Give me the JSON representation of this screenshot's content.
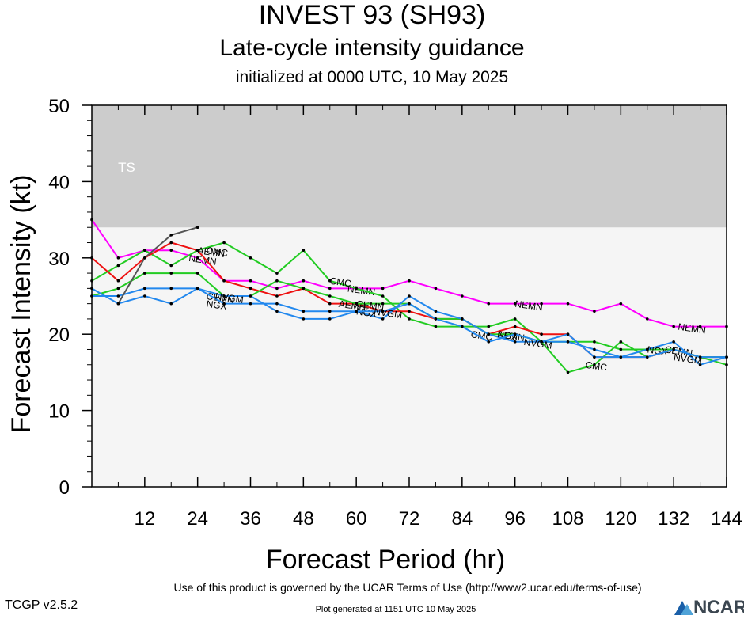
{
  "header": {
    "title": "INVEST 93 (SH93)",
    "subtitle": "Late-cycle intensity guidance",
    "init": "initialized at 0000 UTC, 10 May 2025"
  },
  "footer": {
    "terms": "Use of this product is governed by the UCAR Terms of Use (http://www2.ucar.edu/terms-of-use)",
    "version": "TCGP v2.5.2",
    "plot_generated": "Plot generated at 1151 UTC   10 May 2025",
    "logo_text": "NCAR"
  },
  "chart_data": {
    "type": "line",
    "title": "INVEST 93 (SH93)",
    "subtitle": "Late-cycle intensity guidance",
    "xlabel": "Forecast Period (hr)",
    "ylabel": "Forecast Intensity (kt)",
    "xlim": [
      0,
      144
    ],
    "ylim": [
      0,
      50
    ],
    "xticks": [
      12,
      24,
      36,
      48,
      60,
      72,
      84,
      96,
      108,
      120,
      132,
      144
    ],
    "yticks": [
      0,
      10,
      20,
      30,
      40,
      50
    ],
    "bands": [
      {
        "label": "TS",
        "from": 34,
        "to": 50,
        "color": "#cccccc"
      }
    ],
    "background_color": "#f5f5f5",
    "grid": false,
    "series": [
      {
        "name": "NEMN",
        "color": "#ff00ff",
        "x": [
          0,
          6,
          12,
          18,
          24,
          30,
          36,
          42,
          48,
          54,
          60,
          66,
          72,
          78,
          84,
          90,
          96,
          102,
          108,
          114,
          120,
          126,
          132,
          138,
          144
        ],
        "y": [
          35,
          30,
          31,
          31,
          30,
          27,
          27,
          26,
          27,
          26,
          26,
          26,
          27,
          26,
          25,
          24,
          24,
          24,
          24,
          23,
          24,
          22,
          21,
          21,
          21
        ],
        "labels": [
          {
            "text": "NEMN",
            "x": 22,
            "y": 30
          },
          {
            "text": "NEMN",
            "x": 58,
            "y": 26
          },
          {
            "text": "NEMN",
            "x": 96,
            "y": 24
          },
          {
            "text": "NEMN",
            "x": 133,
            "y": 21
          }
        ]
      },
      {
        "name": "CMC",
        "color": "#22cc22",
        "x": [
          0,
          6,
          12,
          18,
          24,
          30,
          36,
          42,
          48,
          54,
          60,
          66,
          72,
          78,
          84,
          90,
          96,
          102,
          108,
          114,
          120,
          126,
          132,
          138,
          144
        ],
        "y": [
          27,
          29,
          31,
          29,
          31,
          32,
          30,
          28,
          31,
          27,
          26,
          25,
          22,
          21,
          21,
          21,
          22,
          19,
          15,
          16,
          19,
          17,
          18,
          17,
          16
        ],
        "labels": [
          {
            "text": "CMC",
            "x": 26,
            "y": 31
          },
          {
            "text": "CMC",
            "x": 54,
            "y": 27
          },
          {
            "text": "CMC",
            "x": 86,
            "y": 20
          },
          {
            "text": "CMC",
            "x": 112,
            "y": 16
          }
        ]
      },
      {
        "name": "AEMN",
        "color": "#ee1111",
        "x": [
          0,
          6,
          12,
          18,
          24,
          30,
          36,
          42,
          48,
          54,
          60,
          66,
          72,
          78,
          84,
          90,
          96,
          102,
          108,
          114,
          120,
          126,
          132,
          138,
          144
        ],
        "y": [
          30,
          27,
          30,
          32,
          31,
          27,
          26,
          25,
          26,
          24,
          24,
          23,
          23,
          22,
          22,
          20,
          21,
          20,
          20,
          17,
          17,
          17,
          18,
          17,
          17
        ],
        "labels": [
          {
            "text": "AEMN",
            "x": 24,
            "y": 31
          },
          {
            "text": "AEMN",
            "x": 56,
            "y": 24
          },
          {
            "text": "AEMN",
            "x": 92,
            "y": 20
          }
        ]
      },
      {
        "name": "CEMN",
        "color": "#22cc22",
        "x": [
          0,
          6,
          12,
          18,
          24,
          30,
          36,
          42,
          48,
          54,
          60,
          66,
          72,
          78,
          84,
          90,
          96,
          102,
          108,
          114,
          120,
          126,
          132,
          138,
          144
        ],
        "y": [
          25,
          26,
          28,
          28,
          28,
          25,
          25,
          27,
          26,
          25,
          24,
          24,
          24,
          22,
          22,
          20,
          20,
          19,
          19,
          19,
          18,
          18,
          18,
          17,
          17
        ],
        "labels": [
          {
            "text": "CEMN",
            "x": 26,
            "y": 25
          },
          {
            "text": "CEMN",
            "x": 60,
            "y": 24
          },
          {
            "text": "CEMN",
            "x": 130,
            "y": 18
          }
        ]
      },
      {
        "name": "NGX",
        "color": "#2288ee",
        "x": [
          0,
          6,
          12,
          18,
          24,
          30,
          36,
          42,
          48,
          54,
          60,
          66,
          72,
          78,
          84,
          90,
          96,
          102,
          108,
          114,
          120,
          126,
          132,
          138,
          144
        ],
        "y": [
          26,
          24,
          25,
          24,
          26,
          25,
          25,
          23,
          22,
          22,
          23,
          22,
          25,
          23,
          22,
          20,
          19,
          19,
          20,
          17,
          17,
          18,
          19,
          16,
          17
        ],
        "labels": [
          {
            "text": "NGX",
            "x": 26,
            "y": 24
          },
          {
            "text": "NGX",
            "x": 60,
            "y": 23
          },
          {
            "text": "NGX",
            "x": 92,
            "y": 20
          },
          {
            "text": "NGX",
            "x": 126,
            "y": 18
          }
        ]
      },
      {
        "name": "NVGM",
        "color": "#2288ee",
        "x": [
          0,
          6,
          12,
          18,
          24,
          30,
          36,
          42,
          48,
          54,
          60,
          66,
          72,
          78,
          84,
          90,
          96,
          102,
          108,
          114,
          120,
          126,
          132,
          138,
          144
        ],
        "y": [
          25,
          25,
          26,
          26,
          26,
          24,
          24,
          24,
          23,
          23,
          23,
          23,
          24,
          22,
          21,
          19,
          20,
          19,
          19,
          18,
          17,
          17,
          18,
          17,
          17
        ],
        "labels": [
          {
            "text": "NVGM",
            "x": 28,
            "y": 25
          },
          {
            "text": "NVGM",
            "x": 64,
            "y": 23
          },
          {
            "text": "NVGM",
            "x": 98,
            "y": 19
          },
          {
            "text": "NVGM",
            "x": 132,
            "y": 17
          }
        ]
      },
      {
        "name": "",
        "color": "#555555",
        "x": [
          6,
          12,
          18,
          24
        ],
        "y": [
          24,
          30,
          33,
          34
        ],
        "labels": []
      }
    ]
  }
}
